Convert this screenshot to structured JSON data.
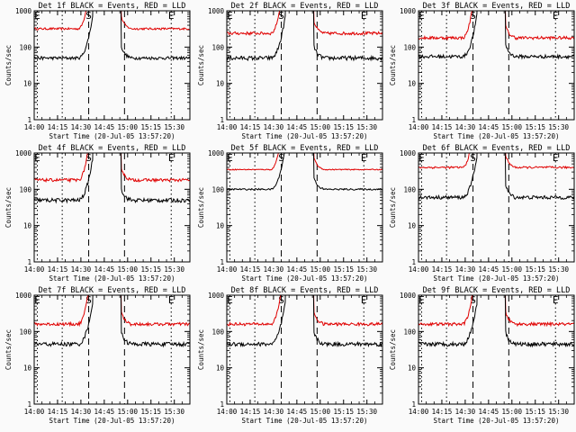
{
  "chart_data": {
    "type": "line",
    "figure": {
      "description": "3x3 grid of detector count-rate light curves",
      "x_axis": {
        "label": "Start Time (20-Jul-05 13:57:20)",
        "range_minutes_after_1400": [
          0,
          100
        ],
        "ticks": [
          {
            "minute": 0,
            "label": "14:00"
          },
          {
            "minute": 15,
            "label": "14:15"
          },
          {
            "minute": 30,
            "label": "14:30"
          },
          {
            "minute": 45,
            "label": "14:45"
          },
          {
            "minute": 60,
            "label": "15:00"
          },
          {
            "minute": 75,
            "label": "15:15"
          },
          {
            "minute": 90,
            "label": "15:30"
          }
        ]
      },
      "y_axis": {
        "label": "Counts/sec",
        "scale": "log",
        "range": [
          1,
          1000
        ],
        "ticks": [
          {
            "value": 1,
            "label": "1"
          },
          {
            "value": 10,
            "label": "10"
          },
          {
            "value": 100,
            "label": "100"
          },
          {
            "value": 1000,
            "label": "1000"
          }
        ]
      },
      "markers": [
        {
          "minute": 2,
          "label": "E",
          "style": "dotted"
        },
        {
          "minute": 18,
          "label": "",
          "style": "dotted"
        },
        {
          "minute": 35,
          "label": "S",
          "style": "dashed"
        },
        {
          "minute": 58,
          "label": "",
          "style": "dashed"
        },
        {
          "minute": 88,
          "label": "E",
          "style": "dotted"
        }
      ],
      "series_legend": {
        "black": "Events",
        "red": "LLD"
      }
    },
    "panels": [
      {
        "title": "Det 1f BLACK = Events, RED = LLD",
        "black_level": 50,
        "red_level": 320,
        "black_noise": 0.06,
        "red_noise": 0.04
      },
      {
        "title": "Det 2f BLACK = Events, RED = LLD",
        "black_level": 50,
        "red_level": 240,
        "black_noise": 0.08,
        "red_noise": 0.06
      },
      {
        "title": "Det 3f BLACK = Events, RED = LLD",
        "black_level": 55,
        "red_level": 180,
        "black_noise": 0.07,
        "red_noise": 0.06
      },
      {
        "title": "Det 4f BLACK = Events, RED = LLD",
        "black_level": 50,
        "red_level": 180,
        "black_noise": 0.08,
        "red_noise": 0.06
      },
      {
        "title": "Det 5f BLACK = Events, RED = LLD",
        "black_level": 100,
        "red_level": 350,
        "black_noise": 0.03,
        "red_noise": 0.02
      },
      {
        "title": "Det 6f BLACK = Events, RED = LLD",
        "black_level": 60,
        "red_level": 400,
        "black_noise": 0.07,
        "red_noise": 0.04
      },
      {
        "title": "Det 7f BLACK = Events, RED = LLD",
        "black_level": 45,
        "red_level": 160,
        "black_noise": 0.08,
        "red_noise": 0.06
      },
      {
        "title": "Det 8f BLACK = Events, RED = LLD",
        "black_level": 45,
        "red_level": 160,
        "black_noise": 0.08,
        "red_noise": 0.06
      },
      {
        "title": "Det 9f BLACK = Events, RED = LLD",
        "black_level": 45,
        "red_level": 160,
        "black_noise": 0.08,
        "red_noise": 0.06
      }
    ]
  },
  "colors": {
    "events": "#000000",
    "lld": "#e00000",
    "background": "#fafafa"
  }
}
